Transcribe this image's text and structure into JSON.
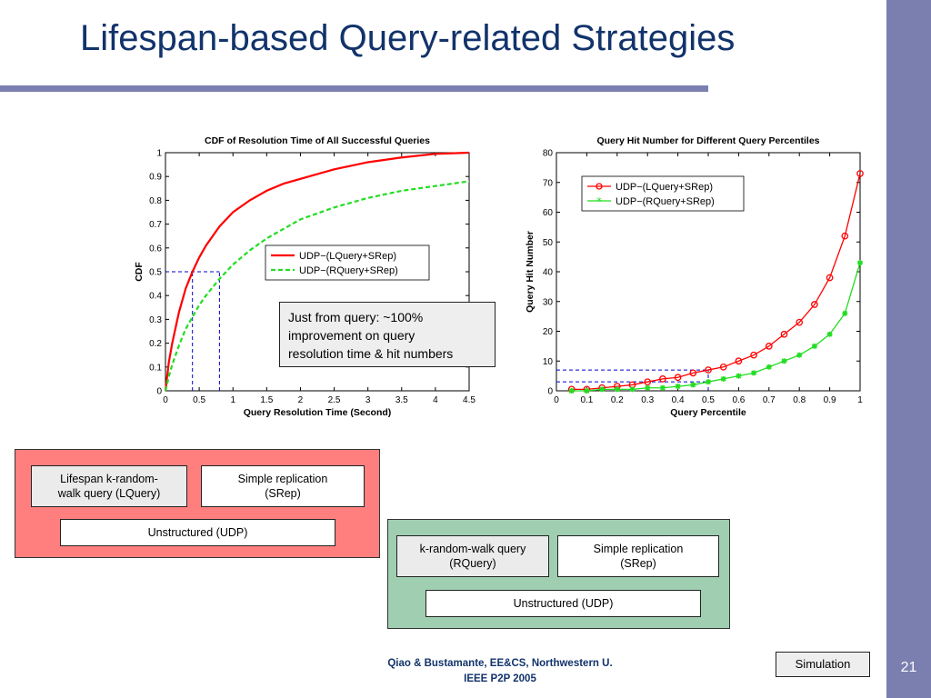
{
  "slide": {
    "title": "Lifespan-based Query-related Strategies",
    "number": "21",
    "footer_line1": "Qiao & Bustamante, EE&CS, Northwestern U.",
    "footer_line2": "IEEE P2P 2005",
    "simulation_label": "Simulation",
    "colors": {
      "accent": "#7b7faf",
      "title": "#12336b",
      "red_panel": "#ff7f7f",
      "green_panel": "#9fcfb0",
      "series_red": "#ff0000",
      "series_green": "#22dd22",
      "guide": "#0000cc"
    }
  },
  "callout": {
    "line1": "Just from query: ~100%",
    "line2": "improvement on query",
    "line3": "resolution time & hit numbers"
  },
  "diagram": {
    "lifespan_query_line1": "Lifespan k-random-",
    "lifespan_query_line2": "walk query (LQuery)",
    "simple_rep_line1": "Simple replication",
    "simple_rep_line2": "(SRep)",
    "unstructured_a": "Unstructured (UDP)",
    "random_walk_line1": "k-random-walk query",
    "random_walk_line2": "(RQuery)",
    "simple_rep2_line1": "Simple replication",
    "simple_rep2_line2": "(SRep)",
    "unstructured_b": "Unstructured (UDP)"
  },
  "chart_data": [
    {
      "type": "line",
      "title": "CDF of Resolution Time of All Successful Queries",
      "xlabel": "Query Resolution Time (Second)",
      "ylabel": "CDF",
      "xlim": [
        0,
        4.5
      ],
      "ylim": [
        0,
        1
      ],
      "xticks": [
        0,
        0.5,
        1,
        1.5,
        2,
        2.5,
        3,
        3.5,
        4,
        4.5
      ],
      "yticks": [
        0,
        0.1,
        0.2,
        0.3,
        0.4,
        0.5,
        0.6,
        0.7,
        0.8,
        0.9,
        1
      ],
      "legend_position": "center-right",
      "grid": false,
      "series": [
        {
          "name": "UDP−(LQuery+SRep)",
          "style": "solid",
          "color": "#ff0000",
          "x": [
            0,
            0.05,
            0.1,
            0.2,
            0.3,
            0.4,
            0.5,
            0.6,
            0.8,
            1.0,
            1.25,
            1.5,
            1.75,
            2.0,
            2.5,
            3.0,
            3.5,
            4.0,
            4.5
          ],
          "y": [
            0,
            0.12,
            0.2,
            0.33,
            0.43,
            0.5,
            0.56,
            0.61,
            0.69,
            0.75,
            0.8,
            0.84,
            0.87,
            0.89,
            0.93,
            0.96,
            0.98,
            0.995,
            1.0
          ]
        },
        {
          "name": "UDP−(RQuery+SRep)",
          "style": "dashed",
          "color": "#22dd22",
          "x": [
            0,
            0.05,
            0.1,
            0.2,
            0.3,
            0.4,
            0.5,
            0.6,
            0.8,
            1.0,
            1.25,
            1.5,
            1.75,
            2.0,
            2.5,
            3.0,
            3.5,
            4.0,
            4.5
          ],
          "y": [
            0,
            0.06,
            0.11,
            0.19,
            0.26,
            0.31,
            0.36,
            0.4,
            0.47,
            0.53,
            0.59,
            0.64,
            0.68,
            0.72,
            0.77,
            0.81,
            0.84,
            0.86,
            0.88
          ]
        }
      ],
      "guides": [
        {
          "from": [
            0,
            0.5
          ],
          "to": [
            0.8,
            0.5
          ]
        },
        {
          "from": [
            0.4,
            0
          ],
          "to": [
            0.4,
            0.5
          ]
        },
        {
          "from": [
            0.8,
            0
          ],
          "to": [
            0.8,
            0.5
          ]
        }
      ]
    },
    {
      "type": "line",
      "title": "Query Hit Number for Different Query Percentiles",
      "xlabel": "Query Percentile",
      "ylabel": "Query Hit Number",
      "xlim": [
        0,
        1
      ],
      "ylim": [
        0,
        80
      ],
      "xticks": [
        0,
        0.1,
        0.2,
        0.3,
        0.4,
        0.5,
        0.6,
        0.7,
        0.8,
        0.9,
        1
      ],
      "yticks": [
        0,
        10,
        20,
        30,
        40,
        50,
        60,
        70,
        80
      ],
      "legend_position": "top-left",
      "grid": false,
      "series": [
        {
          "name": "UDP−(LQuery+SRep)",
          "marker": "circle",
          "color": "#ff0000",
          "x": [
            0.05,
            0.1,
            0.15,
            0.2,
            0.25,
            0.3,
            0.35,
            0.4,
            0.45,
            0.5,
            0.55,
            0.6,
            0.65,
            0.7,
            0.75,
            0.8,
            0.85,
            0.9,
            0.95,
            1.0
          ],
          "y": [
            0.5,
            0.5,
            1,
            1.5,
            2,
            3,
            4,
            4.5,
            6,
            7,
            8,
            10,
            12,
            15,
            19,
            23,
            29,
            38,
            52,
            73
          ]
        },
        {
          "name": "UDP−(RQuery+SRep)",
          "marker": "star",
          "color": "#22dd22",
          "x": [
            0.05,
            0.1,
            0.15,
            0.2,
            0.25,
            0.3,
            0.35,
            0.4,
            0.45,
            0.5,
            0.55,
            0.6,
            0.65,
            0.7,
            0.75,
            0.8,
            0.85,
            0.9,
            0.95,
            1.0
          ],
          "y": [
            0,
            0,
            0.5,
            0.5,
            0.5,
            1,
            1,
            1.5,
            2,
            3,
            4,
            5,
            6,
            8,
            10,
            12,
            15,
            19,
            26,
            43
          ]
        }
      ],
      "guides": [
        {
          "from": [
            0,
            7
          ],
          "to": [
            0.5,
            7
          ]
        },
        {
          "from": [
            0,
            3
          ],
          "to": [
            0.5,
            3
          ]
        },
        {
          "from": [
            0.5,
            0
          ],
          "to": [
            0.5,
            7
          ]
        }
      ]
    }
  ]
}
